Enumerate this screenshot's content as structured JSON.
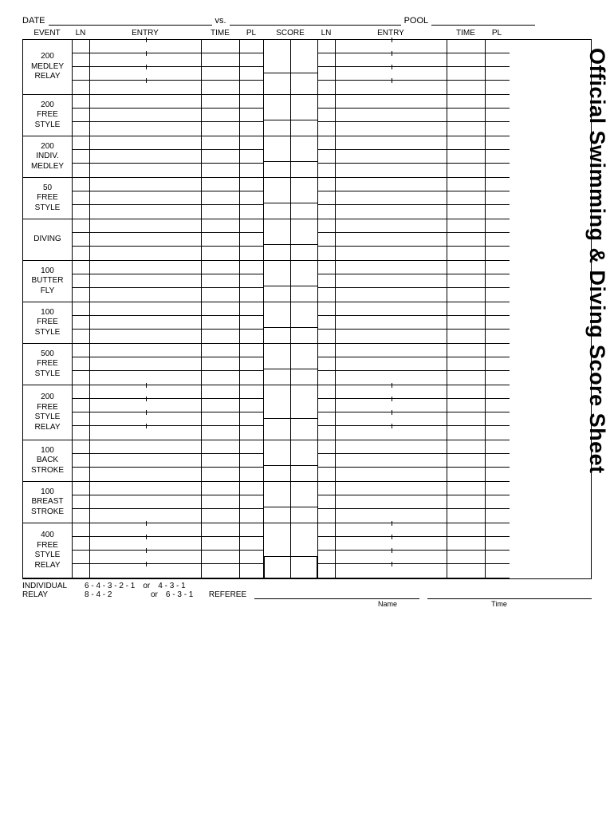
{
  "header": {
    "date_label": "DATE",
    "vs_label": "vs.",
    "pool_label": "POOL"
  },
  "vertical_title": "Official Swimming & Diving Score Sheet",
  "columns": {
    "event": "EVENT",
    "ln": "LN",
    "entry": "ENTRY",
    "time": "TIME",
    "pl": "PL",
    "score": "SCORE"
  },
  "events": [
    {
      "lines": [
        "200",
        "MEDLEY",
        "RELAY"
      ],
      "rows": 4,
      "relay": true,
      "final_box": false
    },
    {
      "lines": [
        "200",
        "FREE",
        "STYLE"
      ],
      "rows": 3,
      "relay": false,
      "final_box": false
    },
    {
      "lines": [
        "200",
        "INDIV.",
        "MEDLEY"
      ],
      "rows": 3,
      "relay": false,
      "final_box": false
    },
    {
      "lines": [
        "50",
        "FREE",
        "STYLE"
      ],
      "rows": 3,
      "relay": false,
      "final_box": false
    },
    {
      "lines": [
        "DIVING"
      ],
      "rows": 3,
      "relay": false,
      "final_box": false
    },
    {
      "lines": [
        "100",
        "BUTTER",
        "FLY"
      ],
      "rows": 3,
      "relay": false,
      "final_box": false
    },
    {
      "lines": [
        "100",
        "FREE",
        "STYLE"
      ],
      "rows": 3,
      "relay": false,
      "final_box": false
    },
    {
      "lines": [
        "500",
        "FREE",
        "STYLE"
      ],
      "rows": 3,
      "relay": false,
      "final_box": false
    },
    {
      "lines": [
        "200",
        "FREE",
        "STYLE",
        "RELAY"
      ],
      "rows": 4,
      "relay": true,
      "final_box": false
    },
    {
      "lines": [
        "100",
        "BACK",
        "STROKE"
      ],
      "rows": 3,
      "relay": false,
      "final_box": false
    },
    {
      "lines": [
        "100",
        "BREAST",
        "STROKE"
      ],
      "rows": 3,
      "relay": false,
      "final_box": false
    },
    {
      "lines": [
        "400",
        "FREE",
        "STYLE",
        "RELAY"
      ],
      "rows": 4,
      "relay": true,
      "final_box": true
    }
  ],
  "footer": {
    "individual_label": "INDIVIDUAL",
    "individual_score1": "6 - 4 - 3 - 2 - 1",
    "or": "or",
    "individual_score2": "4 - 3 - 1",
    "relay_label": "RELAY",
    "relay_score1": "8 - 4 - 2",
    "relay_score2": "6 - 3 - 1",
    "referee_label": "REFEREE",
    "name_label": "Name",
    "time_label": "Time"
  }
}
